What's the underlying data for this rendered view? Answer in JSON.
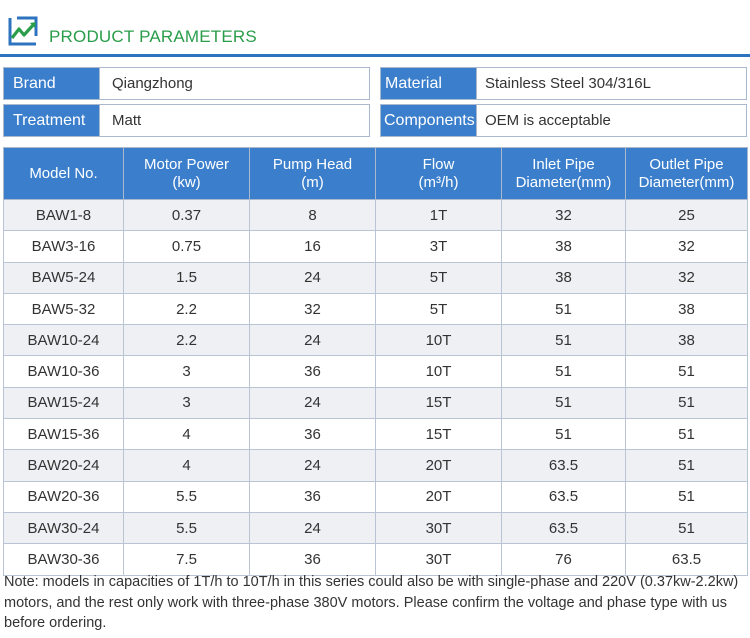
{
  "header": {
    "title": "PRODUCT PARAMETERS",
    "logo_icon": "logo-icon",
    "accent": "#2a9d4b",
    "rule_color": "#2d73bf"
  },
  "info": {
    "brand": {
      "label": "Brand",
      "value": "Qiangzhong"
    },
    "material": {
      "label": "Material",
      "value": "Stainless Steel 304/316L"
    },
    "treatment": {
      "label": "Treatment",
      "value": "Matt"
    },
    "components": {
      "label": "Components",
      "value": "OEM is acceptable"
    }
  },
  "table": {
    "headers": [
      [
        "Model No."
      ],
      [
        "Motor Power",
        "(kw)"
      ],
      [
        "Pump Head",
        "(m)"
      ],
      [
        "Flow",
        "(m³/h)"
      ],
      [
        "Inlet Pipe",
        "Diameter(mm)"
      ],
      [
        "Outlet Pipe",
        "Diameter(mm)"
      ]
    ],
    "rows": [
      [
        "BAW1-8",
        "0.37",
        "8",
        "1T",
        "32",
        "25"
      ],
      [
        "BAW3-16",
        "0.75",
        "16",
        "3T",
        "38",
        "32"
      ],
      [
        "BAW5-24",
        "1.5",
        "24",
        "5T",
        "38",
        "32"
      ],
      [
        "BAW5-32",
        "2.2",
        "32",
        "5T",
        "51",
        "38"
      ],
      [
        "BAW10-24",
        "2.2",
        "24",
        "10T",
        "51",
        "38"
      ],
      [
        "BAW10-36",
        "3",
        "36",
        "10T",
        "51",
        "51"
      ],
      [
        "BAW15-24",
        "3",
        "24",
        "15T",
        "51",
        "51"
      ],
      [
        "BAW15-36",
        "4",
        "36",
        "15T",
        "51",
        "51"
      ],
      [
        "BAW20-24",
        "4",
        "24",
        "20T",
        "63.5",
        "51"
      ],
      [
        "BAW20-36",
        "5.5",
        "36",
        "20T",
        "63.5",
        "51"
      ],
      [
        "BAW30-24",
        "5.5",
        "24",
        "30T",
        "63.5",
        "51"
      ],
      [
        "BAW30-36",
        "7.5",
        "36",
        "30T",
        "76",
        "63.5"
      ]
    ]
  },
  "note": "Note: models in capacities of 1T/h to 10T/h in this series could also be with single-phase and 220V (0.37kw-2.2kw) motors, and the rest only work with three-phase 380V motors. Please confirm the voltage and phase type with us before ordering."
}
